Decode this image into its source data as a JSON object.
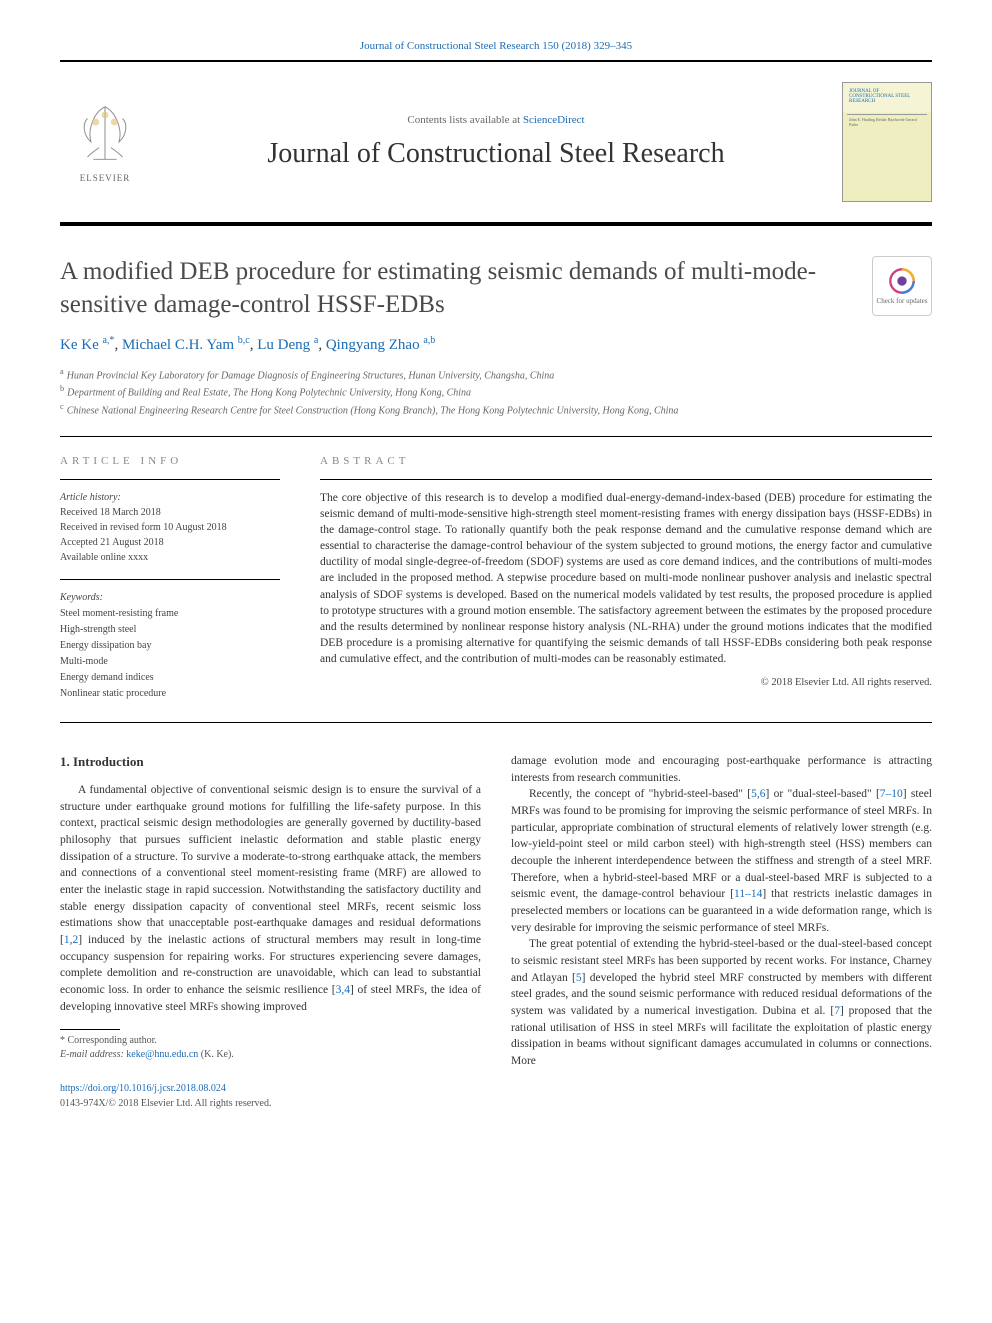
{
  "header": {
    "citation": "Journal of Constructional Steel Research 150 (2018) 329–345",
    "contents_prefix": "Contents lists available at ",
    "contents_link": "ScienceDirect",
    "journal_name": "Journal of Constructional Steel Research",
    "publisher": "ELSEVIER",
    "cover_title": "JOURNAL OF CONSTRUCTIONAL STEEL RESEARCH",
    "cover_editors": "John E. Harding\nReidar Bjorhovde\nGerard Parke"
  },
  "article": {
    "title": "A modified DEB procedure for estimating seismic demands of multi-mode-sensitive damage-control HSSF-EDBs",
    "updates_label": "Check for updates"
  },
  "authors": {
    "list": [
      {
        "name": "Ke Ke",
        "affil": "a,*"
      },
      {
        "name": "Michael C.H. Yam",
        "affil": "b,c"
      },
      {
        "name": "Lu Deng",
        "affil": "a"
      },
      {
        "name": "Qingyang Zhao",
        "affil": "a,b"
      }
    ]
  },
  "affiliations": [
    {
      "key": "a",
      "text": "Hunan Provincial Key Laboratory for Damage Diagnosis of Engineering Structures, Hunan University, Changsha, China"
    },
    {
      "key": "b",
      "text": "Department of Building and Real Estate, The Hong Kong Polytechnic University, Hong Kong, China"
    },
    {
      "key": "c",
      "text": "Chinese National Engineering Research Centre for Steel Construction (Hong Kong Branch), The Hong Kong Polytechnic University, Hong Kong, China"
    }
  ],
  "info": {
    "section_label": "ARTICLE INFO",
    "history_label": "Article history:",
    "received": "Received 18 March 2018",
    "revised": "Received in revised form 10 August 2018",
    "accepted": "Accepted 21 August 2018",
    "available": "Available online xxxx",
    "keywords_label": "Keywords:",
    "keywords": [
      "Steel moment-resisting frame",
      "High-strength steel",
      "Energy dissipation bay",
      "Multi-mode",
      "Energy demand indices",
      "Nonlinear static procedure"
    ]
  },
  "abstract": {
    "section_label": "ABSTRACT",
    "text": "The core objective of this research is to develop a modified dual-energy-demand-index-based (DEB) procedure for estimating the seismic demand of multi-mode-sensitive high-strength steel moment-resisting frames with energy dissipation bays (HSSF-EDBs) in the damage-control stage. To rationally quantify both the peak response demand and the cumulative response demand which are essential to characterise the damage-control behaviour of the system subjected to ground motions, the energy factor and cumulative ductility of modal single-degree-of-freedom (SDOF) systems are used as core demand indices, and the contributions of multi-modes are included in the proposed method. A stepwise procedure based on multi-mode nonlinear pushover analysis and inelastic spectral analysis of SDOF systems is developed. Based on the numerical models validated by test results, the proposed procedure is applied to prototype structures with a ground motion ensemble. The satisfactory agreement between the estimates by the proposed procedure and the results determined by nonlinear response history analysis (NL-RHA) under the ground motions indicates that the modified DEB procedure is a promising alternative for quantifying the seismic demands of tall HSSF-EDBs considering both peak response and cumulative effect, and the contribution of multi-modes can be reasonably estimated.",
    "copyright": "© 2018 Elsevier Ltd. All rights reserved."
  },
  "body": {
    "heading": "1. Introduction",
    "left_paras": [
      "A fundamental objective of conventional seismic design is to ensure the survival of a structure under earthquake ground motions for fulfilling the life-safety purpose. In this context, practical seismic design methodologies are generally governed by ductility-based philosophy that pursues sufficient inelastic deformation and stable plastic energy dissipation of a structure. To survive a moderate-to-strong earthquake attack, the members and connections of a conventional steel moment-resisting frame (MRF) are allowed to enter the inelastic stage in rapid succession. Notwithstanding the satisfactory ductility and stable energy dissipation capacity of conventional steel MRFs, recent seismic loss estimations show that unacceptable post-earthquake damages and residual deformations [1,2] induced by the inelastic actions of structural members may result in long-time occupancy suspension for repairing works. For structures experiencing severe damages, complete demolition and re-construction are unavoidable, which can lead to substantial economic loss. In order to enhance the seismic resilience [3,4] of steel MRFs, the idea of developing innovative steel MRFs showing improved"
    ],
    "right_paras": [
      "damage evolution mode and encouraging post-earthquake performance is attracting interests from research communities.",
      "Recently, the concept of \"hybrid-steel-based\" [5,6] or \"dual-steel-based\" [7–10] steel MRFs was found to be promising for improving the seismic performance of steel MRFs. In particular, appropriate combination of structural elements of relatively lower strength (e.g. low-yield-point steel or mild carbon steel) with high-strength steel (HSS) members can decouple the inherent interdependence between the stiffness and strength of a steel MRF. Therefore, when a hybrid-steel-based MRF or a dual-steel-based MRF is subjected to a seismic event, the damage-control behaviour [11–14] that restricts inelastic damages in preselected members or locations can be guaranteed in a wide deformation range, which is very desirable for improving the seismic performance of steel MRFs.",
      "The great potential of extending the hybrid-steel-based or the dual-steel-based concept to seismic resistant steel MRFs has been supported by recent works. For instance, Charney and Atlayan [5] developed the hybrid steel MRF constructed by members with different steel grades, and the sound seismic performance with reduced residual deformations of the system was validated by a numerical investigation. Dubina et al. [7] proposed that the rational utilisation of HSS in steel MRFs will facilitate the exploitation of plastic energy dissipation in beams without significant damages accumulated in columns or connections. More"
    ]
  },
  "corresponding": {
    "label": "* Corresponding author.",
    "email_label": "E-mail address:",
    "email": "keke@hnu.edu.cn",
    "name": "(K. Ke)."
  },
  "footer": {
    "doi": "https://doi.org/10.1016/j.jcsr.2018.08.024",
    "issn": "0143-974X/© 2018 Elsevier Ltd. All rights reserved."
  },
  "colors": {
    "link": "#1a6bb5",
    "text": "#333333",
    "muted": "#666666",
    "rule": "#000000"
  },
  "typography": {
    "body_fontsize_pt": 9,
    "title_fontsize_pt": 19,
    "journal_fontsize_pt": 21,
    "font_family": "Georgia, serif"
  }
}
